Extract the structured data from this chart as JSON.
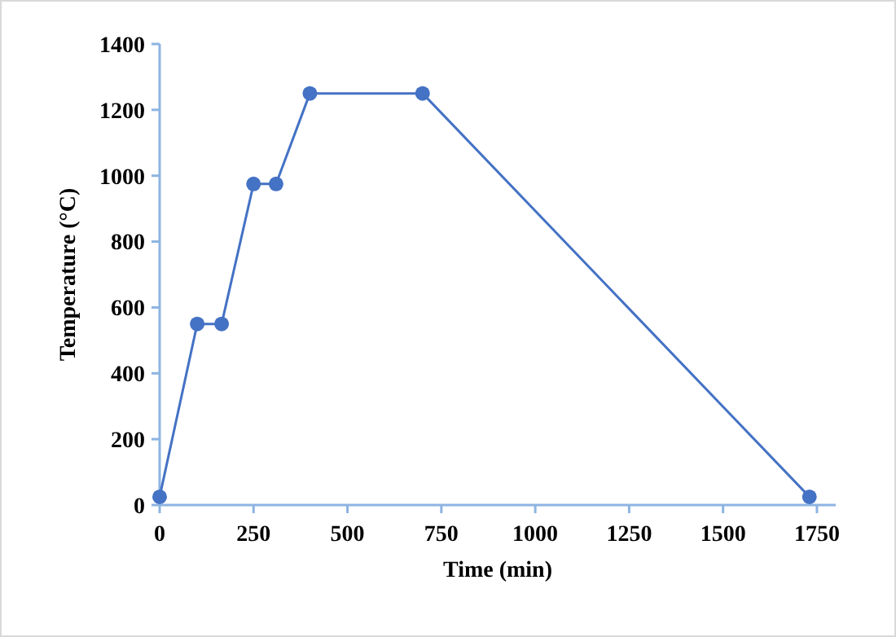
{
  "chart_data": {
    "type": "line",
    "xlabel": "Time (min)",
    "ylabel": "Temperature (°C)",
    "x": [
      0,
      100,
      165,
      250,
      310,
      400,
      700,
      1730
    ],
    "series": [
      {
        "color": "#4472c4",
        "values": [
          25,
          550,
          550,
          975,
          975,
          1250,
          1250,
          25
        ]
      }
    ],
    "xlim": [
      0,
      1800
    ],
    "xticks": [
      0,
      250,
      500,
      750,
      1000,
      1250,
      1500,
      1750
    ],
    "ylim": [
      0,
      1400
    ],
    "yticks": [
      0,
      200,
      400,
      600,
      800,
      1000,
      1200,
      1400
    ],
    "marker": "circle",
    "line_style": "solid"
  }
}
